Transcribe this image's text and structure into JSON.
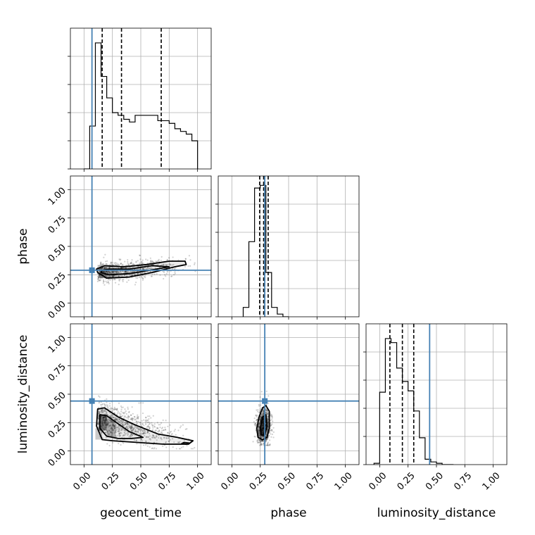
{
  "chart_data": {
    "type": "corner",
    "parameters": [
      "geocent_time",
      "phase",
      "luminosity_distance"
    ],
    "axis_range": [
      -0.12,
      1.12
    ],
    "tick_labels": [
      "0.00",
      "0.25",
      "0.50",
      "0.75",
      "1.00"
    ],
    "tick_values": [
      0,
      0.25,
      0.5,
      0.75,
      1.0
    ],
    "truth_color": "#4682b4",
    "truths": {
      "geocent_time": 0.07,
      "phase": 0.29,
      "luminosity_distance": 0.44
    },
    "quantiles": {
      "geocent_time": [
        0.16,
        0.33,
        0.68
      ],
      "phase": [
        0.245,
        0.28,
        0.32
      ],
      "luminosity_distance": [
        0.09,
        0.2,
        0.3
      ]
    },
    "histograms": {
      "geocent_time": {
        "edges": [
          0.0,
          0.05,
          0.1,
          0.15,
          0.2,
          0.25,
          0.3,
          0.35,
          0.4,
          0.45,
          0.5,
          0.55,
          0.6,
          0.65,
          0.7,
          0.75,
          0.8,
          0.85,
          0.9,
          0.95,
          1.0
        ],
        "counts": [
          0.0,
          0.32,
          0.94,
          0.69,
          0.53,
          0.42,
          0.4,
          0.37,
          0.35,
          0.4,
          0.4,
          0.4,
          0.4,
          0.36,
          0.36,
          0.34,
          0.3,
          0.28,
          0.26,
          0.21,
          0.0
        ]
      },
      "phase": {
        "edges": [
          0.1,
          0.15,
          0.2,
          0.25,
          0.3,
          0.35,
          0.4,
          0.45,
          0.5
        ],
        "counts": [
          0.07,
          0.56,
          0.96,
          0.98,
          0.33,
          0.07,
          0.02,
          0.0
        ]
      },
      "luminosity_distance": {
        "edges": [
          -0.05,
          0.0,
          0.05,
          0.1,
          0.15,
          0.2,
          0.25,
          0.3,
          0.35,
          0.4,
          0.45,
          0.5,
          0.55,
          0.6,
          0.65
        ],
        "counts": [
          0.01,
          0.54,
          0.94,
          0.91,
          0.72,
          0.62,
          0.55,
          0.4,
          0.2,
          0.04,
          0.02,
          0.01,
          0.0,
          0.0
        ]
      }
    },
    "contours": {
      "geocent_time__phase": [
        [
          [
            0.12,
            0.27
          ],
          [
            0.2,
            0.22
          ],
          [
            0.4,
            0.23
          ],
          [
            0.6,
            0.27
          ],
          [
            0.8,
            0.32
          ],
          [
            0.9,
            0.34
          ],
          [
            0.89,
            0.37
          ],
          [
            0.75,
            0.37
          ],
          [
            0.55,
            0.34
          ],
          [
            0.35,
            0.32
          ],
          [
            0.18,
            0.33
          ],
          [
            0.11,
            0.3
          ]
        ],
        [
          [
            0.15,
            0.27
          ],
          [
            0.22,
            0.25
          ],
          [
            0.4,
            0.26
          ],
          [
            0.58,
            0.29
          ],
          [
            0.75,
            0.32
          ],
          [
            0.6,
            0.33
          ],
          [
            0.4,
            0.3
          ],
          [
            0.22,
            0.3
          ],
          [
            0.16,
            0.29
          ]
        ]
      ],
      "geocent_time__luminosity_distance": [
        [
          [
            0.12,
            0.37
          ],
          [
            0.18,
            0.38
          ],
          [
            0.3,
            0.3
          ],
          [
            0.45,
            0.23
          ],
          [
            0.65,
            0.15
          ],
          [
            0.82,
            0.12
          ],
          [
            0.96,
            0.09
          ],
          [
            0.92,
            0.06
          ],
          [
            0.7,
            0.06
          ],
          [
            0.4,
            0.08
          ],
          [
            0.25,
            0.09
          ],
          [
            0.16,
            0.1
          ],
          [
            0.11,
            0.22
          ]
        ],
        [
          [
            0.14,
            0.32
          ],
          [
            0.2,
            0.31
          ],
          [
            0.3,
            0.24
          ],
          [
            0.4,
            0.17
          ],
          [
            0.52,
            0.12
          ],
          [
            0.42,
            0.11
          ],
          [
            0.3,
            0.11
          ],
          [
            0.2,
            0.13
          ],
          [
            0.14,
            0.2
          ]
        ],
        [
          [
            0.88,
            0.075
          ],
          [
            0.93,
            0.07
          ],
          [
            0.9,
            0.06
          ],
          [
            0.86,
            0.065
          ]
        ]
      ],
      "phase__luminosity_distance": [
        [
          [
            0.22,
            0.2
          ],
          [
            0.24,
            0.3
          ],
          [
            0.27,
            0.38
          ],
          [
            0.3,
            0.4
          ],
          [
            0.33,
            0.35
          ],
          [
            0.33,
            0.2
          ],
          [
            0.31,
            0.12
          ],
          [
            0.27,
            0.1
          ],
          [
            0.23,
            0.12
          ]
        ],
        [
          [
            0.25,
            0.2
          ],
          [
            0.27,
            0.3
          ],
          [
            0.3,
            0.32
          ],
          [
            0.31,
            0.22
          ],
          [
            0.29,
            0.14
          ],
          [
            0.26,
            0.14
          ]
        ]
      ]
    }
  }
}
